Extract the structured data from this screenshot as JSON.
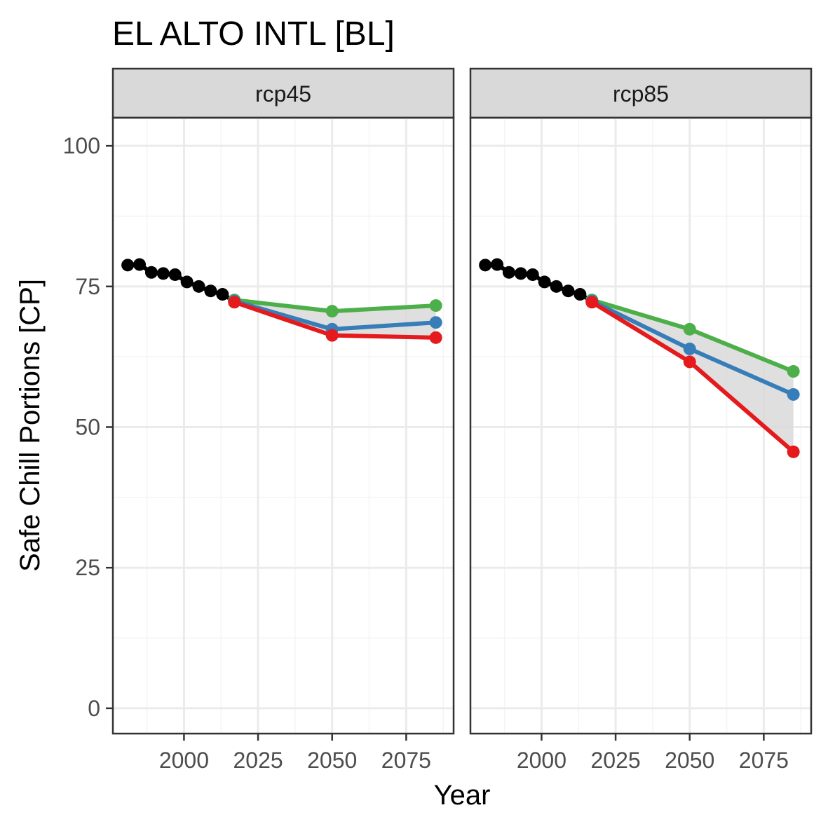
{
  "chart_data": {
    "type": "line",
    "title": "EL ALTO INTL [BL]",
    "xlabel": "Year",
    "ylabel": "Safe Chill Portions [CP]",
    "xlim": [
      1976,
      2091
    ],
    "ylim": [
      -4.5,
      105
    ],
    "x_ticks": [
      2000,
      2025,
      2050,
      2075
    ],
    "y_ticks": [
      0,
      25,
      50,
      75,
      100
    ],
    "grid": true,
    "legend": "none",
    "colors": {
      "historic": "#000000",
      "green": "#4daf4a",
      "blue": "#377eb8",
      "red": "#e41a1c",
      "ribbon": "#d9d9d9",
      "strip_fill": "#d9d9d9",
      "grid_major": "#ebebeb",
      "grid_minor": "#f4f4f4",
      "panel_border": "#333333",
      "axis_text": "#4d4d4d"
    },
    "panels": [
      {
        "strip": "rcp45",
        "historic": {
          "x": [
            1981,
            1985,
            1989,
            1993,
            1997,
            2001,
            2005,
            2009,
            2013,
            2017
          ],
          "y": [
            78.8,
            78.9,
            77.5,
            77.3,
            77.1,
            75.8,
            75.0,
            74.2,
            73.6,
            72.4
          ]
        },
        "scenarios": [
          {
            "color": "green",
            "x": [
              2017,
              2050,
              2085
            ],
            "y": [
              72.6,
              70.6,
              71.6
            ]
          },
          {
            "color": "blue",
            "x": [
              2017,
              2050,
              2085
            ],
            "y": [
              72.4,
              67.4,
              68.6
            ]
          },
          {
            "color": "red",
            "x": [
              2017,
              2050,
              2085
            ],
            "y": [
              72.2,
              66.3,
              65.9
            ]
          }
        ],
        "ribbon": {
          "x": [
            2017,
            2050,
            2085
          ],
          "ymin": [
            72.2,
            66.3,
            65.9
          ],
          "ymax": [
            72.6,
            70.6,
            71.6
          ]
        }
      },
      {
        "strip": "rcp85",
        "historic": {
          "x": [
            1981,
            1985,
            1989,
            1993,
            1997,
            2001,
            2005,
            2009,
            2013,
            2017
          ],
          "y": [
            78.8,
            78.9,
            77.5,
            77.3,
            77.1,
            75.8,
            75.0,
            74.2,
            73.6,
            72.4
          ]
        },
        "scenarios": [
          {
            "color": "green",
            "x": [
              2017,
              2050,
              2085
            ],
            "y": [
              72.6,
              67.4,
              59.9
            ]
          },
          {
            "color": "blue",
            "x": [
              2017,
              2050,
              2085
            ],
            "y": [
              72.4,
              63.9,
              55.8
            ]
          },
          {
            "color": "red",
            "x": [
              2017,
              2050,
              2085
            ],
            "y": [
              72.2,
              61.6,
              45.6
            ]
          }
        ],
        "ribbon": {
          "x": [
            2017,
            2050,
            2085
          ],
          "ymin": [
            72.2,
            61.6,
            45.6
          ],
          "ymax": [
            72.6,
            67.4,
            59.9
          ]
        }
      }
    ]
  }
}
